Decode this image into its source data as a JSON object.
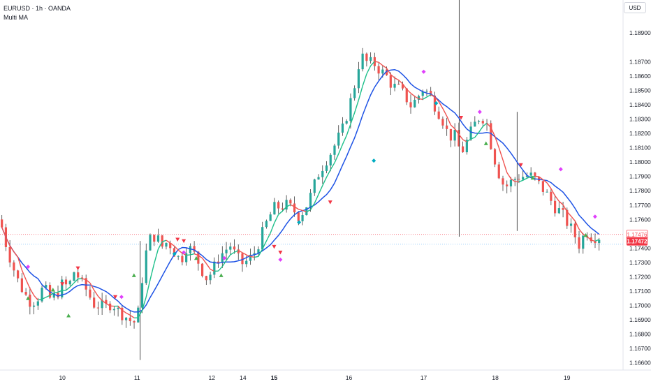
{
  "header": {
    "symbol_line": "EURUSD · 1h · OANDA",
    "indicator": "Multi MA",
    "currency": "USD"
  },
  "colors": {
    "bull": "#26a69a",
    "bear": "#ef5350",
    "ma_fast_up": "#1dbf8a",
    "ma_fast_down": "#ef5350",
    "ma_slow": "#1e53e5",
    "bull_marker": "#4caf50",
    "bear_marker": "#f23645",
    "diamond_magenta": "#e040fb",
    "diamond_teal": "#00acc1",
    "last_price_bg": "#f23645",
    "prev_close_line": "#f7525f",
    "bid_line": "#90caf9"
  },
  "chart_data": {
    "type": "candlestick",
    "title": "EURUSD · 1h · OANDA",
    "indicator": "Multi MA",
    "yaxis": {
      "ticks": [
        1.189,
        1.187,
        1.186,
        1.185,
        1.184,
        1.183,
        1.182,
        1.181,
        1.18,
        1.179,
        1.178,
        1.177,
        1.176,
        1.174,
        1.173,
        1.172,
        1.171,
        1.17,
        1.169,
        1.168,
        1.167,
        1.166
      ],
      "tick_labels": [
        "1.18900",
        "1.18700",
        "1.18600",
        "1.18500",
        "1.18400",
        "1.18300",
        "1.18200",
        "1.18100",
        "1.18000",
        "1.17900",
        "1.17800",
        "1.17700",
        "1.17600",
        "1.17400",
        "1.17300",
        "1.17200",
        "1.17100",
        "1.17000",
        "1.16900",
        "1.16800",
        "1.16700",
        "1.16600"
      ],
      "range": [
        1.1655,
        1.1913
      ]
    },
    "xaxis": {
      "tick_labels": [
        "10",
        "11",
        "12",
        "14",
        "15",
        "16",
        "17",
        "18",
        "19"
      ],
      "tick_positions": [
        0.1,
        0.22,
        0.34,
        0.39,
        0.44,
        0.56,
        0.68,
        0.795,
        0.91
      ],
      "bold_labels": [
        "15"
      ],
      "range": [
        0,
        1
      ]
    },
    "price_labels": {
      "previous_close": "1.17476",
      "last": "1.17472"
    },
    "price_levels": {
      "previous_close": 1.17476,
      "last": 1.17472,
      "bid": 1.17432
    },
    "ohlc_path": [
      [
        0.0,
        1.176
      ],
      [
        0.01,
        1.1742
      ],
      [
        0.02,
        1.1728
      ],
      [
        0.03,
        1.1716
      ],
      [
        0.04,
        1.1708
      ],
      [
        0.05,
        1.1702
      ],
      [
        0.06,
        1.1705
      ],
      [
        0.07,
        1.1713
      ],
      [
        0.08,
        1.1705
      ],
      [
        0.09,
        1.1707
      ],
      [
        0.1,
        1.1715
      ],
      [
        0.11,
        1.1713
      ],
      [
        0.12,
        1.1725
      ],
      [
        0.13,
        1.1716
      ],
      [
        0.14,
        1.171
      ],
      [
        0.15,
        1.1701
      ],
      [
        0.16,
        1.17
      ],
      [
        0.17,
        1.1699
      ],
      [
        0.18,
        1.1702
      ],
      [
        0.19,
        1.1696
      ],
      [
        0.2,
        1.1693
      ],
      [
        0.21,
        1.1689
      ],
      [
        0.22,
        1.1688
      ],
      [
        0.225,
        1.1708
      ],
      [
        0.23,
        1.1725
      ],
      [
        0.235,
        1.1738
      ],
      [
        0.24,
        1.1746
      ],
      [
        0.25,
        1.1749
      ],
      [
        0.26,
        1.1741
      ],
      [
        0.27,
        1.1745
      ],
      [
        0.28,
        1.1737
      ],
      [
        0.29,
        1.1731
      ],
      [
        0.3,
        1.1742
      ],
      [
        0.31,
        1.1737
      ],
      [
        0.32,
        1.1729
      ],
      [
        0.33,
        1.1719
      ],
      [
        0.34,
        1.1723
      ],
      [
        0.35,
        1.1733
      ],
      [
        0.36,
        1.1738
      ],
      [
        0.37,
        1.1742
      ],
      [
        0.38,
        1.1733
      ],
      [
        0.39,
        1.1729
      ],
      [
        0.4,
        1.1732
      ],
      [
        0.41,
        1.1738
      ],
      [
        0.42,
        1.1749
      ],
      [
        0.43,
        1.176
      ],
      [
        0.44,
        1.1768
      ],
      [
        0.45,
        1.1769
      ],
      [
        0.46,
        1.177
      ],
      [
        0.47,
        1.1767
      ],
      [
        0.48,
        1.1762
      ],
      [
        0.49,
        1.1768
      ],
      [
        0.5,
        1.1778
      ],
      [
        0.51,
        1.1791
      ],
      [
        0.52,
        1.1799
      ],
      [
        0.53,
        1.1806
      ],
      [
        0.54,
        1.1814
      ],
      [
        0.55,
        1.1823
      ],
      [
        0.56,
        1.1838
      ],
      [
        0.57,
        1.1855
      ],
      [
        0.575,
        1.1867
      ],
      [
        0.58,
        1.1874
      ],
      [
        0.59,
        1.1869
      ],
      [
        0.6,
        1.1869
      ],
      [
        0.61,
        1.1864
      ],
      [
        0.62,
        1.186
      ],
      [
        0.63,
        1.1853
      ],
      [
        0.64,
        1.1851
      ],
      [
        0.65,
        1.1846
      ],
      [
        0.66,
        1.1839
      ],
      [
        0.67,
        1.1845
      ],
      [
        0.68,
        1.1852
      ],
      [
        0.69,
        1.1846
      ],
      [
        0.7,
        1.1838
      ],
      [
        0.71,
        1.183
      ],
      [
        0.72,
        1.1818
      ],
      [
        0.73,
        1.1818
      ],
      [
        0.74,
        1.1806
      ],
      [
        0.75,
        1.1815
      ],
      [
        0.76,
        1.1825
      ],
      [
        0.77,
        1.1832
      ],
      [
        0.78,
        1.183
      ],
      [
        0.79,
        1.1808
      ],
      [
        0.8,
        1.1793
      ],
      [
        0.81,
        1.1782
      ],
      [
        0.82,
        1.1786
      ],
      [
        0.83,
        1.179
      ],
      [
        0.84,
        1.179
      ],
      [
        0.85,
        1.1791
      ],
      [
        0.86,
        1.1787
      ],
      [
        0.87,
        1.1782
      ],
      [
        0.88,
        1.1776
      ],
      [
        0.89,
        1.1769
      ],
      [
        0.9,
        1.1765
      ],
      [
        0.91,
        1.1758
      ],
      [
        0.92,
        1.1751
      ],
      [
        0.93,
        1.1742
      ],
      [
        0.94,
        1.1752
      ],
      [
        0.95,
        1.1748
      ],
      [
        0.96,
        1.1748
      ]
    ],
    "long_wicks": [
      {
        "x": 0.225,
        "low": 1.1662,
        "high": 1.1745
      },
      {
        "x": 0.737,
        "low": 1.1748,
        "high": 1.1913
      },
      {
        "x": 0.83,
        "low": 1.1752,
        "high": 1.1835
      }
    ],
    "markers": [
      {
        "type": "bull",
        "x": 0.045,
        "y": 1.1705
      },
      {
        "type": "bull",
        "x": 0.085,
        "y": 1.1711
      },
      {
        "type": "bear",
        "x": 0.1,
        "y": 1.1715
      },
      {
        "type": "bear",
        "x": 0.125,
        "y": 1.1726
      },
      {
        "type": "bull",
        "x": 0.11,
        "y": 1.1693
      },
      {
        "type": "bear",
        "x": 0.185,
        "y": 1.1706
      },
      {
        "type": "bull",
        "x": 0.215,
        "y": 1.1721
      },
      {
        "type": "bear",
        "x": 0.285,
        "y": 1.1746
      },
      {
        "type": "bear",
        "x": 0.295,
        "y": 1.1745
      },
      {
        "type": "bull",
        "x": 0.315,
        "y": 1.1733
      },
      {
        "type": "bull",
        "x": 0.355,
        "y": 1.1721
      },
      {
        "type": "bear",
        "x": 0.44,
        "y": 1.1741
      },
      {
        "type": "bear",
        "x": 0.45,
        "y": 1.1737
      },
      {
        "type": "bear",
        "x": 0.53,
        "y": 1.1772
      },
      {
        "type": "bear",
        "x": 0.74,
        "y": 1.1831
      },
      {
        "type": "bull",
        "x": 0.78,
        "y": 1.1813
      },
      {
        "type": "bear",
        "x": 0.836,
        "y": 1.1798
      },
      {
        "type": "bull",
        "x": 0.855,
        "y": 1.1789
      },
      {
        "type": "bull",
        "x": 0.94,
        "y": 1.1749
      }
    ],
    "diamonds": [
      {
        "color": "magenta",
        "x": 0.045,
        "y": 1.1727
      },
      {
        "color": "magenta",
        "x": 0.195,
        "y": 1.1706
      },
      {
        "color": "magenta",
        "x": 0.295,
        "y": 1.1737
      },
      {
        "color": "magenta",
        "x": 0.36,
        "y": 1.1733
      },
      {
        "color": "magenta",
        "x": 0.45,
        "y": 1.1732
      },
      {
        "color": "teal",
        "x": 0.28,
        "y": 1.1736
      },
      {
        "color": "teal",
        "x": 0.48,
        "y": 1.1758
      },
      {
        "color": "teal",
        "x": 0.6,
        "y": 1.1801
      },
      {
        "color": "magenta",
        "x": 0.68,
        "y": 1.1863
      },
      {
        "color": "teal",
        "x": 0.7,
        "y": 1.1841
      },
      {
        "color": "magenta",
        "x": 0.77,
        "y": 1.1835
      },
      {
        "color": "magenta",
        "x": 0.9,
        "y": 1.1795
      },
      {
        "color": "magenta",
        "x": 0.955,
        "y": 1.1762
      }
    ]
  }
}
